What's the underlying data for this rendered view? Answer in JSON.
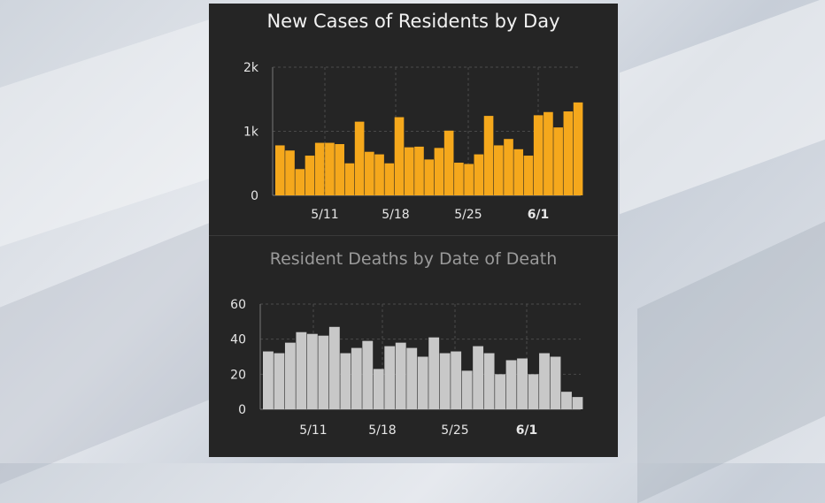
{
  "chart_data": [
    {
      "type": "bar",
      "title": "New Cases of Residents by Day",
      "color": "#f5a81c",
      "x_tick_labels": [
        "5/11",
        "5/18",
        "5/25",
        "6/1"
      ],
      "y_tick_labels": [
        "0",
        "1k",
        "2k"
      ],
      "ylim": [
        0,
        2000
      ],
      "grid": true,
      "values": [
        780,
        700,
        410,
        620,
        820,
        820,
        800,
        500,
        1150,
        680,
        640,
        500,
        1220,
        750,
        760,
        560,
        740,
        1010,
        510,
        490,
        640,
        1240,
        780,
        880,
        720,
        620,
        1250,
        1300,
        1060,
        1310,
        1450
      ]
    },
    {
      "type": "bar",
      "title": "Resident Deaths by Date of Death",
      "color": "#c8c8c8",
      "x_tick_labels": [
        "5/11",
        "5/18",
        "5/25",
        "6/1"
      ],
      "y_tick_labels": [
        "0",
        "20",
        "40",
        "60"
      ],
      "ylim": [
        0,
        60
      ],
      "grid": true,
      "values": [
        33,
        32,
        38,
        44,
        43,
        42,
        47,
        32,
        35,
        39,
        23,
        36,
        38,
        35,
        30,
        41,
        32,
        33,
        22,
        36,
        32,
        20,
        28,
        29,
        20,
        32,
        30,
        10,
        7
      ]
    }
  ]
}
